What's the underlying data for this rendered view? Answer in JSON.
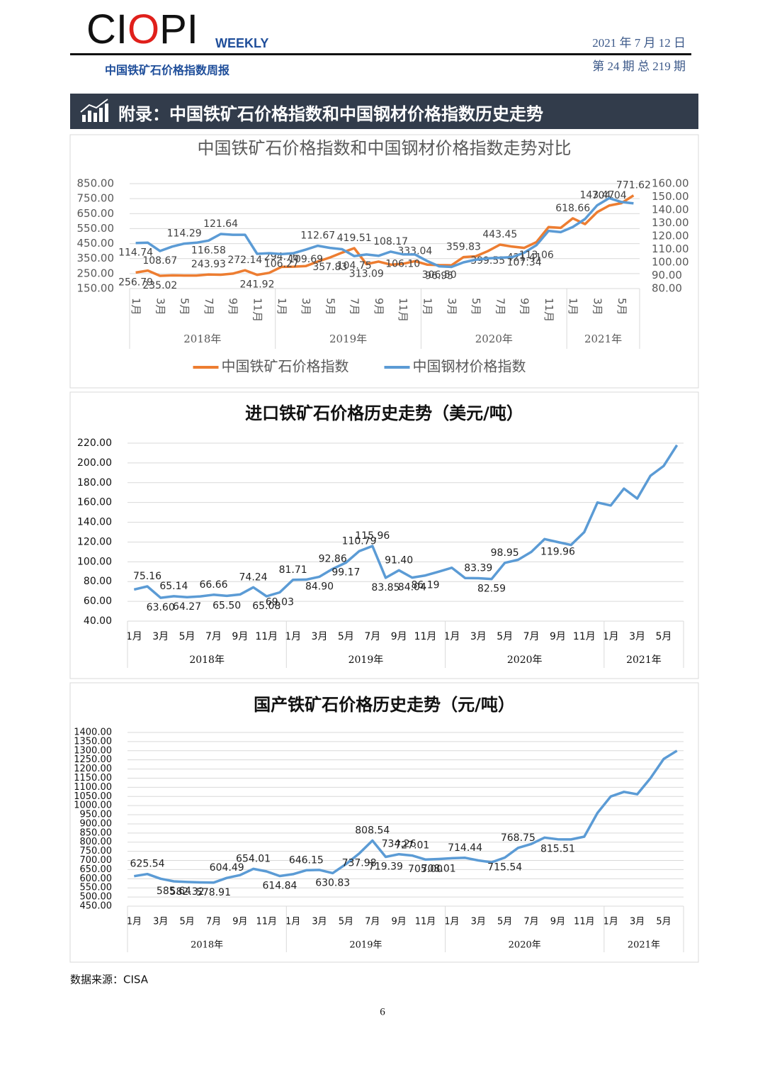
{
  "header": {
    "logo_parts": [
      "CI",
      "O",
      "PI"
    ],
    "weekly": "WEEKLY",
    "date": "2021 年 7 月 12 日",
    "subtitle": "中国铁矿石价格指数周报",
    "issue": "第 24 期 总 219 期"
  },
  "section_title": "附录：中国铁矿石价格指数和中国钢材价格指数历史走势",
  "chart_data": [
    {
      "type": "line",
      "title": "中国铁矿石价格指数和中国钢材价格指数走势对比",
      "categories": [
        "1月",
        null,
        "3月",
        null,
        "5月",
        null,
        "7月",
        null,
        "9月",
        null,
        "11月",
        null,
        "1月",
        null,
        "3月",
        null,
        "5月",
        null,
        "7月",
        null,
        "9月",
        null,
        "11月",
        null,
        "1月",
        null,
        "3月",
        null,
        "5月",
        null,
        "7月",
        null,
        "9月",
        null,
        "11月",
        null,
        "1月",
        null,
        "3月",
        null,
        "5月",
        null
      ],
      "x_groups": [
        {
          "label": "2018年",
          "count": 12
        },
        {
          "label": "2019年",
          "count": 12
        },
        {
          "label": "2020年",
          "count": 12
        },
        {
          "label": "2021年",
          "count": 6
        }
      ],
      "ylim": [
        150,
        850
      ],
      "yticks": [
        {
          "value": 150,
          "label": "150.00"
        },
        {
          "value": 250,
          "label": "250.00"
        },
        {
          "value": 350,
          "label": "350.00"
        },
        {
          "value": 450,
          "label": "450.00"
        },
        {
          "value": 550,
          "label": "550.00"
        },
        {
          "value": 650,
          "label": "650.00"
        },
        {
          "value": 750,
          "label": "750.00"
        },
        {
          "value": 850,
          "label": "850.00"
        }
      ],
      "y2lim": [
        80,
        160
      ],
      "y2ticks": [
        {
          "value": 80,
          "label": "80.00"
        },
        {
          "value": 90,
          "label": "90.00"
        },
        {
          "value": 100,
          "label": "100.00"
        },
        {
          "value": 110,
          "label": "110.00"
        },
        {
          "value": 120,
          "label": "120.00"
        },
        {
          "value": 130,
          "label": "130.00"
        },
        {
          "value": 140,
          "label": "140.00"
        },
        {
          "value": 150,
          "label": "150.00"
        },
        {
          "value": 160,
          "label": "160.00"
        }
      ],
      "grid": true,
      "legend": "bottom",
      "rotate_categories": true,
      "series": [
        {
          "name": "中国铁矿石价格指数",
          "color": "#ed7d31",
          "values": [
            256.79,
            270,
            235.02,
            238,
            237,
            237,
            243.93,
            242,
            250,
            272.14,
            241.92,
            255,
            294.76,
            296,
            300,
            330,
            357.83,
            390,
            419.51,
            313.09,
            330,
            310,
            315,
            333.04,
            310,
            306.5,
            305,
            359.83,
            365,
            399.55,
            443.45,
            430,
            421.41,
            460,
            560,
            555,
            618.66,
            580,
            660,
            704.04,
            720,
            771.62
          ],
          "value_labels": [
            "256.79",
            null,
            "235.02",
            null,
            null,
            null,
            "243.93",
            null,
            null,
            "272.14",
            "241.92",
            null,
            "294.76",
            null,
            null,
            null,
            "357.83",
            null,
            "419.51",
            "313.09",
            null,
            null,
            null,
            "333.04",
            null,
            "306.50",
            null,
            "359.83",
            null,
            "399.55",
            "443.45",
            null,
            "421.41",
            null,
            null,
            null,
            "618.66",
            null,
            null,
            "704.04",
            null,
            "771.62"
          ]
        },
        {
          "name": "中国钢材价格指数",
          "color": "#5b9bd5",
          "axis": "y2",
          "values": [
            114.74,
            115,
            108.67,
            112,
            114.29,
            115,
            116.58,
            121.64,
            121,
            121,
            106.5,
            107,
            106.27,
            107,
            109.69,
            112.67,
            111,
            110,
            104.75,
            106,
            105,
            108.17,
            106.1,
            106,
            101,
            96.95,
            96.5,
            100,
            102,
            103,
            103.5,
            104,
            107.34,
            113.06,
            124,
            123,
            127,
            133,
            143.47,
            149,
            146,
            145
          ],
          "value_labels": [
            "114.74",
            null,
            "108.67",
            null,
            "114.29",
            null,
            "116.58",
            "121.64",
            null,
            null,
            null,
            null,
            "106.27",
            null,
            "109.69",
            "112.67",
            null,
            null,
            "104.75",
            null,
            null,
            "108.17",
            "106.10",
            null,
            null,
            "96.95",
            null,
            null,
            null,
            null,
            null,
            null,
            "107.34",
            "113.06",
            null,
            null,
            null,
            null,
            "143.47",
            null,
            null,
            null
          ]
        }
      ]
    },
    {
      "type": "line",
      "title": "进口铁矿石价格历史走势（美元/吨）",
      "categories": [
        "1月",
        null,
        "3月",
        null,
        "5月",
        null,
        "7月",
        null,
        "9月",
        null,
        "11月",
        null,
        "1月",
        null,
        "3月",
        null,
        "5月",
        null,
        "7月",
        null,
        "9月",
        null,
        "11月",
        null,
        "1月",
        null,
        "3月",
        null,
        "5月",
        null,
        "7月",
        null,
        "9月",
        null,
        "11月",
        null,
        "1月",
        null,
        "3月",
        null,
        "5月",
        null
      ],
      "x_groups": [
        {
          "label": "2018年",
          "count": 12
        },
        {
          "label": "2019年",
          "count": 12
        },
        {
          "label": "2020年",
          "count": 12
        },
        {
          "label": "2021年",
          "count": 6
        }
      ],
      "ylim": [
        40,
        220
      ],
      "yticks": [
        {
          "value": 40,
          "label": "40.00"
        },
        {
          "value": 60,
          "label": "60.00"
        },
        {
          "value": 80,
          "label": "80.00"
        },
        {
          "value": 100,
          "label": "100.00"
        },
        {
          "value": 120,
          "label": "120.00"
        },
        {
          "value": 140,
          "label": "140.00"
        },
        {
          "value": 160,
          "label": "160.00"
        },
        {
          "value": 180,
          "label": "180.00"
        },
        {
          "value": 200,
          "label": "200.00"
        },
        {
          "value": 220,
          "label": "220.00"
        }
      ],
      "grid": true,
      "color": "#5b9bd5",
      "values": [
        72,
        75.16,
        63.6,
        65.14,
        64.27,
        65,
        66.66,
        65.5,
        67,
        74.24,
        65.08,
        69.03,
        81.71,
        82,
        84.9,
        92.86,
        99.17,
        110.79,
        115.96,
        83.85,
        91.4,
        84.04,
        86.19,
        90,
        94,
        83.6,
        83.39,
        82.59,
        98.95,
        102,
        110,
        123,
        119.96,
        117,
        130,
        160,
        157,
        174,
        164,
        187,
        197,
        218
      ],
      "value_labels": [
        null,
        "75.16",
        "63.60",
        "65.14",
        "64.27",
        null,
        "66.66",
        "65.50",
        null,
        "74.24",
        "65.08",
        "69.03",
        "81.71",
        null,
        "84.90",
        "92.86",
        "99.17",
        "110.79",
        "115.96",
        "83.85",
        "91.40",
        "84.04",
        "86.19",
        null,
        null,
        null,
        "83.39",
        "82.59",
        "98.95",
        null,
        null,
        null,
        "119.96",
        null,
        null,
        null,
        null,
        null,
        null,
        null,
        null,
        null
      ]
    },
    {
      "type": "line",
      "title": "国产铁矿石价格历史走势（元/吨）",
      "categories": [
        "1月",
        null,
        "3月",
        null,
        "5月",
        null,
        "7月",
        null,
        "9月",
        null,
        "11月",
        null,
        "1月",
        null,
        "3月",
        null,
        "5月",
        null,
        "7月",
        null,
        "9月",
        null,
        "11月",
        null,
        "1月",
        null,
        "3月",
        null,
        "5月",
        null,
        "7月",
        null,
        "9月",
        null,
        "11月",
        null,
        "1月",
        null,
        "3月",
        null,
        "5月",
        null
      ],
      "x_groups": [
        {
          "label": "2018年",
          "count": 12
        },
        {
          "label": "2019年",
          "count": 12
        },
        {
          "label": "2020年",
          "count": 12
        },
        {
          "label": "2021年",
          "count": 6
        }
      ],
      "ylim": [
        450,
        1400
      ],
      "yticks": [
        {
          "value": 450,
          "label": "450.00"
        },
        {
          "value": 500,
          "label": "500.00"
        },
        {
          "value": 550,
          "label": "550.00"
        },
        {
          "value": 600,
          "label": "600.00"
        },
        {
          "value": 650,
          "label": "650.00"
        },
        {
          "value": 700,
          "label": "700.00"
        },
        {
          "value": 750,
          "label": "750.00"
        },
        {
          "value": 800,
          "label": "800.00"
        },
        {
          "value": 850,
          "label": "850.00"
        },
        {
          "value": 900,
          "label": "900.00"
        },
        {
          "value": 950,
          "label": "950.00"
        },
        {
          "value": 1000,
          "label": "1000.00"
        },
        {
          "value": 1050,
          "label": "1050.00"
        },
        {
          "value": 1100,
          "label": "1100.00"
        },
        {
          "value": 1150,
          "label": "1150.00"
        },
        {
          "value": 1200,
          "label": "1200.00"
        },
        {
          "value": 1250,
          "label": "1250.00"
        },
        {
          "value": 1300,
          "label": "1300.00"
        },
        {
          "value": 1350,
          "label": "1350.00"
        },
        {
          "value": 1400,
          "label": "1400.00"
        }
      ],
      "grid": true,
      "color": "#5b9bd5",
      "values": [
        614,
        625.54,
        600,
        585.64,
        582.32,
        580,
        578.91,
        604.49,
        620,
        654.01,
        640,
        614.84,
        625,
        646.15,
        648,
        630.83,
        680,
        737.98,
        808.54,
        719.39,
        734.26,
        727.01,
        705.0,
        708.01,
        712,
        714.44,
        700,
        690,
        715.54,
        768.75,
        790,
        825,
        815.51,
        815,
        830,
        960,
        1050,
        1075,
        1062,
        1150,
        1255,
        1300
      ],
      "value_labels": [
        null,
        "625.54",
        null,
        "585.64",
        "582.32",
        null,
        "578.91",
        "604.49",
        null,
        "654.01",
        null,
        "614.84",
        null,
        "646.15",
        null,
        "630.83",
        null,
        "737.98",
        "808.54",
        "719.39",
        "734.26",
        "727.01",
        "705.00",
        "708.01",
        null,
        "714.44",
        null,
        null,
        "715.54",
        "768.75",
        null,
        null,
        "815.51",
        null,
        null,
        null,
        null,
        null,
        null,
        null,
        null,
        null
      ]
    }
  ],
  "source": "数据来源：CISA",
  "page_number": "6"
}
